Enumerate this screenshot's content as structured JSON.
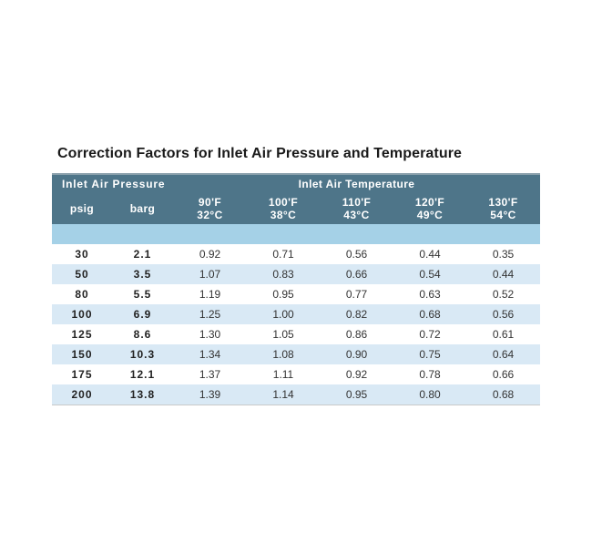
{
  "title": "Correction Factors for Inlet Air Pressure and Temperature",
  "colors": {
    "header_bg": "#4e7589",
    "header_text": "#ffffff",
    "header_top_edge": "#8aa0ac",
    "spacer_blue": "#a5d1e7",
    "row_alt_blue": "#d9e9f5",
    "row_white": "#ffffff",
    "table_bottom_border": "#c9c9c9",
    "title_text": "#1a1a1a",
    "cell_text": "#333333",
    "pressure_value_text": "#222222"
  },
  "table": {
    "pressure_group": "Inlet Air Pressure",
    "temperature_group": "Inlet Air Temperature",
    "columns": [
      {
        "lines": [
          "psig"
        ]
      },
      {
        "lines": [
          "barg"
        ]
      },
      {
        "lines": [
          "90'F",
          "32°C"
        ]
      },
      {
        "lines": [
          "100'F",
          "38°C"
        ]
      },
      {
        "lines": [
          "110'F",
          "43°C"
        ]
      },
      {
        "lines": [
          "120'F",
          "49°C"
        ]
      },
      {
        "lines": [
          "130'F",
          "54°C"
        ]
      }
    ],
    "rows": [
      [
        "30",
        "2.1",
        "0.92",
        "0.71",
        "0.56",
        "0.44",
        "0.35"
      ],
      [
        "50",
        "3.5",
        "1.07",
        "0.83",
        "0.66",
        "0.54",
        "0.44"
      ],
      [
        "80",
        "5.5",
        "1.19",
        "0.95",
        "0.77",
        "0.63",
        "0.52"
      ],
      [
        "100",
        "6.9",
        "1.25",
        "1.00",
        "0.82",
        "0.68",
        "0.56"
      ],
      [
        "125",
        "8.6",
        "1.30",
        "1.05",
        "0.86",
        "0.72",
        "0.61"
      ],
      [
        "150",
        "10.3",
        "1.34",
        "1.08",
        "0.90",
        "0.75",
        "0.64"
      ],
      [
        "175",
        "12.1",
        "1.37",
        "1.11",
        "0.92",
        "0.78",
        "0.66"
      ],
      [
        "200",
        "13.8",
        "1.39",
        "1.14",
        "0.95",
        "0.80",
        "0.68"
      ]
    ]
  }
}
